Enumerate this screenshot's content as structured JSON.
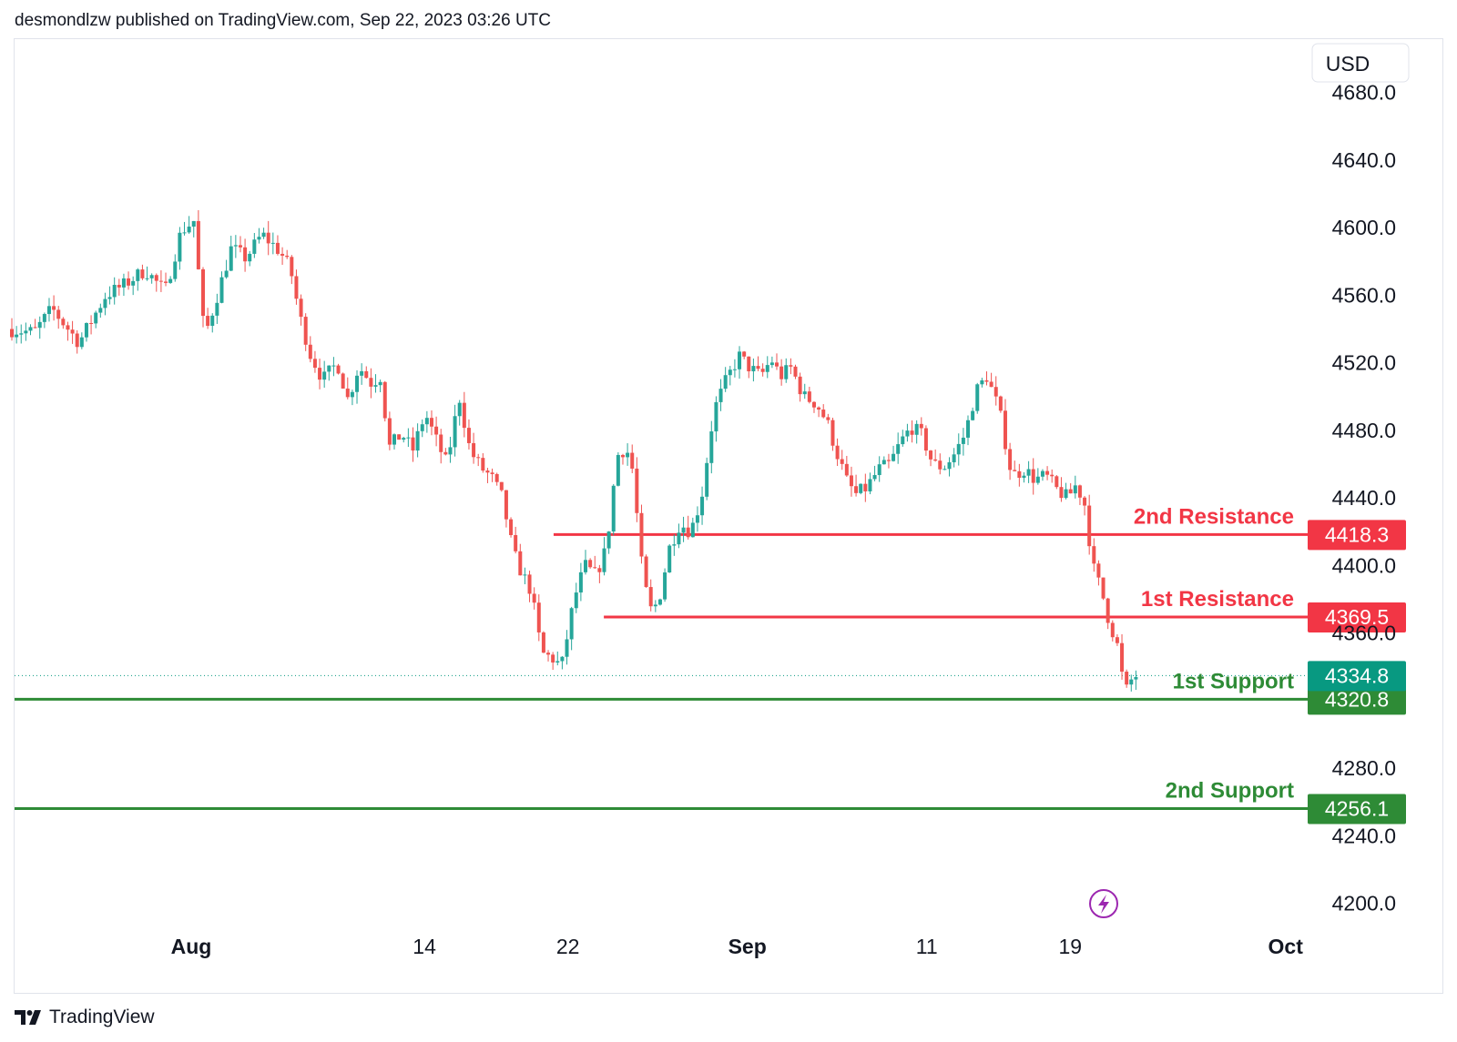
{
  "header": {
    "published": "desmondlzw published on TradingView.com, Sep 22, 2023 03:26 UTC"
  },
  "brand": {
    "name": "TradingView"
  },
  "currency": "USD",
  "colors": {
    "up": "#26a69a",
    "down": "#ef5350",
    "resistance": "#f23645",
    "support": "#2e8b36",
    "last": "#089981",
    "lightning": "#9c27b0"
  },
  "chart_data": {
    "type": "candlestick",
    "title": "",
    "xlabel": "",
    "ylabel": "",
    "ylim": [
      4189.0,
      4710.0
    ],
    "yticks": [
      "4680.0",
      "4640.0",
      "4600.0",
      "4560.0",
      "4520.0",
      "4480.0",
      "4440.0",
      "4400.0",
      "4360.0",
      "4280.0",
      "4240.0",
      "4200.0"
    ],
    "xticks": [
      {
        "label": "Aug",
        "day": 0,
        "bold": true
      },
      {
        "label": "14",
        "day": 13,
        "bold": false
      },
      {
        "label": "22",
        "day": 21,
        "bold": false
      },
      {
        "label": "Sep",
        "day": 31,
        "bold": true
      },
      {
        "label": "11",
        "day": 41,
        "bold": false
      },
      {
        "label": "19",
        "day": 49,
        "bold": false
      },
      {
        "label": "Oct",
        "day": 61,
        "bold": true
      }
    ],
    "levels": [
      {
        "name": "2nd Resistance",
        "value": "4418.3",
        "kind": "resistance",
        "from_day": 20.2
      },
      {
        "name": "1st Resistance",
        "value": "4369.5",
        "kind": "resistance",
        "from_day": 23.0
      },
      {
        "name": "1st Support",
        "value": "4320.8",
        "kind": "support",
        "from_day": -10
      },
      {
        "name": "2nd Support",
        "value": "4256.1",
        "kind": "support",
        "from_day": -10
      }
    ],
    "last_price": "4334.8",
    "path": [
      [
        -10,
        4540
      ],
      [
        -8.5,
        4538
      ],
      [
        -7.5,
        4552
      ],
      [
        -6,
        4532
      ],
      [
        -4.5,
        4560
      ],
      [
        -3.5,
        4566
      ],
      [
        -2.3,
        4575
      ],
      [
        -1.2,
        4562
      ],
      [
        -0.3,
        4598
      ],
      [
        0.4,
        4604
      ],
      [
        1.0,
        4535
      ],
      [
        1.8,
        4563
      ],
      [
        2.5,
        4588
      ],
      [
        3.3,
        4582
      ],
      [
        4.2,
        4596
      ],
      [
        5.2,
        4586
      ],
      [
        5.8,
        4575
      ],
      [
        6.3,
        4548
      ],
      [
        6.9,
        4525
      ],
      [
        7.6,
        4510
      ],
      [
        8.4,
        4520
      ],
      [
        9.0,
        4498
      ],
      [
        9.6,
        4518
      ],
      [
        10.3,
        4508
      ],
      [
        10.8,
        4512
      ],
      [
        11.3,
        4470
      ],
      [
        12.0,
        4478
      ],
      [
        12.6,
        4468
      ],
      [
        13.3,
        4490
      ],
      [
        14.0,
        4472
      ],
      [
        14.5,
        4460
      ],
      [
        15.2,
        4500
      ],
      [
        15.8,
        4468
      ],
      [
        16.4,
        4458
      ],
      [
        17.0,
        4452
      ],
      [
        17.6,
        4440
      ],
      [
        18.2,
        4408
      ],
      [
        18.7,
        4395
      ],
      [
        19.2,
        4385
      ],
      [
        19.8,
        4348
      ],
      [
        20.4,
        4345
      ],
      [
        20.9,
        4340
      ],
      [
        21.6,
        4380
      ],
      [
        22.2,
        4400
      ],
      [
        22.8,
        4394
      ],
      [
        23.4,
        4410
      ],
      [
        24.0,
        4465
      ],
      [
        24.5,
        4470
      ],
      [
        24.9,
        4455
      ],
      [
        25.3,
        4405
      ],
      [
        25.8,
        4373
      ],
      [
        26.3,
        4378
      ],
      [
        26.9,
        4410
      ],
      [
        27.5,
        4425
      ],
      [
        28.1,
        4420
      ],
      [
        28.7,
        4440
      ],
      [
        29.4,
        4492
      ],
      [
        30.1,
        4510
      ],
      [
        30.8,
        4524
      ],
      [
        31.4,
        4517
      ],
      [
        32.0,
        4512
      ],
      [
        32.6,
        4522
      ],
      [
        33.1,
        4512
      ],
      [
        33.7,
        4517
      ],
      [
        34.4,
        4500
      ],
      [
        35.1,
        4496
      ],
      [
        35.7,
        4485
      ],
      [
        36.3,
        4465
      ],
      [
        36.8,
        4450
      ],
      [
        37.3,
        4442
      ],
      [
        37.9,
        4446
      ],
      [
        38.6,
        4457
      ],
      [
        39.2,
        4460
      ],
      [
        39.8,
        4473
      ],
      [
        40.4,
        4482
      ],
      [
        41.0,
        4477
      ],
      [
        41.6,
        4460
      ],
      [
        42.2,
        4458
      ],
      [
        42.8,
        4466
      ],
      [
        43.4,
        4478
      ],
      [
        44.0,
        4503
      ],
      [
        44.6,
        4512
      ],
      [
        45.3,
        4492
      ],
      [
        46.0,
        4453
      ],
      [
        46.7,
        4457
      ],
      [
        47.3,
        4451
      ],
      [
        47.9,
        4453
      ],
      [
        48.5,
        4445
      ],
      [
        49.1,
        4440
      ],
      [
        49.6,
        4448
      ],
      [
        50.1,
        4435
      ],
      [
        50.5,
        4400
      ],
      [
        51.0,
        4385
      ],
      [
        51.4,
        4368
      ],
      [
        51.9,
        4352
      ],
      [
        52.3,
        4324
      ],
      [
        52.7,
        4333
      ],
      [
        52.9,
        4334.8
      ]
    ]
  }
}
